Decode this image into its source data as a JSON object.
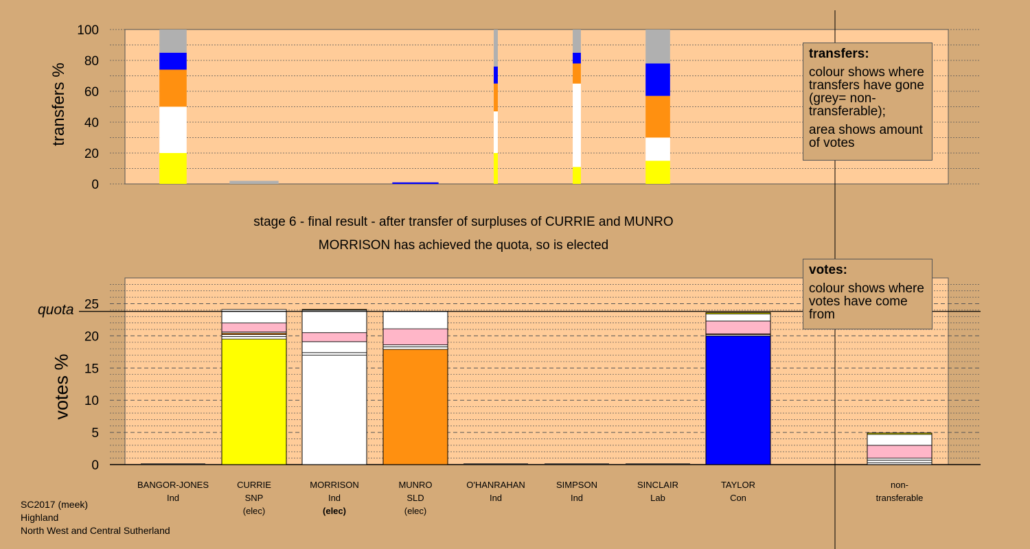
{
  "titles": {
    "line1": "stage 6 - final result - after transfer of surpluses of CURRIE and MUNRO",
    "line2": "MORRISON has achieved the quota, so is elected"
  },
  "top_axis_label": "transfers %",
  "bottom_axis_label": "votes %",
  "quota_label": "quota",
  "legend_transfers": {
    "heading": "transfers:",
    "text1": "colour shows where transfers have gone (grey= non-transferable);",
    "text2": "area shows amount of votes"
  },
  "legend_votes": {
    "heading": "votes:",
    "text1": "colour shows where votes have come from"
  },
  "candidates": [
    {
      "name": "BANGOR-JONES",
      "party": "Ind",
      "status": ""
    },
    {
      "name": "CURRIE",
      "party": "SNP",
      "status": "(elec)"
    },
    {
      "name": "MORRISON",
      "party": "Ind",
      "status": "(elec)"
    },
    {
      "name": "MUNRO",
      "party": "SLD",
      "status": "(elec)"
    },
    {
      "name": "O'HANRAHAN",
      "party": "Ind",
      "status": ""
    },
    {
      "name": "SIMPSON",
      "party": "Ind",
      "status": ""
    },
    {
      "name": "SINCLAIR",
      "party": "Lab",
      "status": ""
    },
    {
      "name": "TAYLOR",
      "party": "Con",
      "status": ""
    }
  ],
  "nontransferable_label": {
    "line1": "non-",
    "line2": "transferable"
  },
  "footer": {
    "line1": "SC2017 (meek)",
    "line2": "Highland",
    "line3": "North West and Central Sutherland"
  },
  "colors": {
    "background": "#d4aa78",
    "plot_area": "#ffcc99",
    "Ind": "#ffffff",
    "SNP": "#ffff00",
    "SLD": "#ff9010",
    "Con": "#0000ff",
    "Lab": "#ff0000",
    "nontransferable": "#b0b0b0",
    "pink": "#ffb6c8"
  },
  "chart_data": [
    {
      "type": "bar",
      "subtype": "stacked-transfers",
      "ylabel": "transfers %",
      "ylim": [
        0,
        100
      ],
      "yticks": [
        0,
        20,
        40,
        60,
        80,
        100
      ],
      "bars": [
        {
          "candidate": "BANGOR-JONES",
          "width_share": 1.0,
          "segments": [
            {
              "color": "yellow",
              "value": 20
            },
            {
              "color": "white",
              "value": 30
            },
            {
              "color": "orange",
              "value": 24
            },
            {
              "color": "blue",
              "value": 11
            },
            {
              "color": "grey",
              "value": 15
            }
          ]
        },
        {
          "candidate": "CURRIE",
          "width_share": 1.8,
          "segments": [
            {
              "color": "grey",
              "value": 2
            }
          ]
        },
        {
          "candidate": "MUNRO",
          "width_share": 1.7,
          "segments": [
            {
              "color": "blue",
              "value": 1
            }
          ]
        },
        {
          "candidate": "O'HANRAHAN",
          "width_share": 0.15,
          "segments": [
            {
              "color": "yellow",
              "value": 20
            },
            {
              "color": "white",
              "value": 27
            },
            {
              "color": "orange",
              "value": 18
            },
            {
              "color": "blue",
              "value": 11
            },
            {
              "color": "grey",
              "value": 24
            }
          ]
        },
        {
          "candidate": "SIMPSON",
          "width_share": 0.3,
          "segments": [
            {
              "color": "yellow",
              "value": 11
            },
            {
              "color": "white",
              "value": 54
            },
            {
              "color": "orange",
              "value": 13
            },
            {
              "color": "blue",
              "value": 7
            },
            {
              "color": "grey",
              "value": 15
            }
          ]
        },
        {
          "candidate": "SINCLAIR",
          "width_share": 0.9,
          "segments": [
            {
              "color": "yellow",
              "value": 15
            },
            {
              "color": "white",
              "value": 15
            },
            {
              "color": "orange",
              "value": 27
            },
            {
              "color": "blue",
              "value": 21
            },
            {
              "color": "grey",
              "value": 22
            }
          ]
        }
      ]
    },
    {
      "type": "bar",
      "subtype": "stacked-votes",
      "ylabel": "votes %",
      "ylim": [
        0,
        29
      ],
      "yticks": [
        0,
        5,
        10,
        15,
        20,
        25
      ],
      "quota": 23.8,
      "categories": [
        "BANGOR-JONES",
        "CURRIE",
        "MORRISON",
        "MUNRO",
        "O'HANRAHAN",
        "SIMPSON",
        "SINCLAIR",
        "TAYLOR",
        "non-transferable"
      ],
      "bars": [
        {
          "candidate": "BANGOR-JONES",
          "total": 0,
          "base_color": "white",
          "segments": []
        },
        {
          "candidate": "CURRIE",
          "total": 23.8,
          "base_color": "yellow",
          "segments": [
            {
              "color": "yellow",
              "value": 19.5
            },
            {
              "color": "white",
              "value": 0.4
            },
            {
              "color": "white",
              "value": 0.3
            },
            {
              "color": "orange",
              "value": 0.2
            },
            {
              "color": "white",
              "value": 0.2
            },
            {
              "color": "pink",
              "value": 1.4
            },
            {
              "color": "white",
              "value": 2.1
            }
          ]
        },
        {
          "candidate": "MORRISON",
          "total": 24.1,
          "base_color": "white",
          "segments": [
            {
              "color": "white",
              "value": 17.0
            },
            {
              "color": "white",
              "value": 0.4
            },
            {
              "color": "white",
              "value": 1.7
            },
            {
              "color": "pink",
              "value": 1.4
            },
            {
              "color": "white",
              "value": 3.5
            },
            {
              "color": "yellow",
              "value": 0.1
            }
          ]
        },
        {
          "candidate": "MUNRO",
          "total": 23.8,
          "base_color": "orange",
          "segments": [
            {
              "color": "orange",
              "value": 17.9
            },
            {
              "color": "white",
              "value": 0.4
            },
            {
              "color": "white",
              "value": 0.3
            },
            {
              "color": "pink",
              "value": 2.5
            },
            {
              "color": "white",
              "value": 2.7
            }
          ]
        },
        {
          "candidate": "O'HANRAHAN",
          "total": 0,
          "base_color": "white",
          "segments": []
        },
        {
          "candidate": "SIMPSON",
          "total": 0,
          "base_color": "white",
          "segments": []
        },
        {
          "candidate": "SINCLAIR",
          "total": 0,
          "base_color": "red",
          "segments": []
        },
        {
          "candidate": "TAYLOR",
          "total": 23.6,
          "base_color": "blue",
          "segments": [
            {
              "color": "blue",
              "value": 20.0
            },
            {
              "color": "white",
              "value": 0.2
            },
            {
              "color": "orange",
              "value": 0.1
            },
            {
              "color": "pink",
              "value": 2.0
            },
            {
              "color": "white",
              "value": 1.1
            },
            {
              "color": "yellow",
              "value": 0.2
            }
          ]
        },
        {
          "candidate": "non-transferable",
          "total": 4.9,
          "base_color": "white",
          "segments": [
            {
              "color": "white",
              "value": 0.3
            },
            {
              "color": "white",
              "value": 0.4
            },
            {
              "color": "white",
              "value": 0.3
            },
            {
              "color": "pink",
              "value": 2.0
            },
            {
              "color": "white",
              "value": 1.7
            },
            {
              "color": "yellow",
              "value": 0.2
            }
          ]
        }
      ]
    }
  ]
}
